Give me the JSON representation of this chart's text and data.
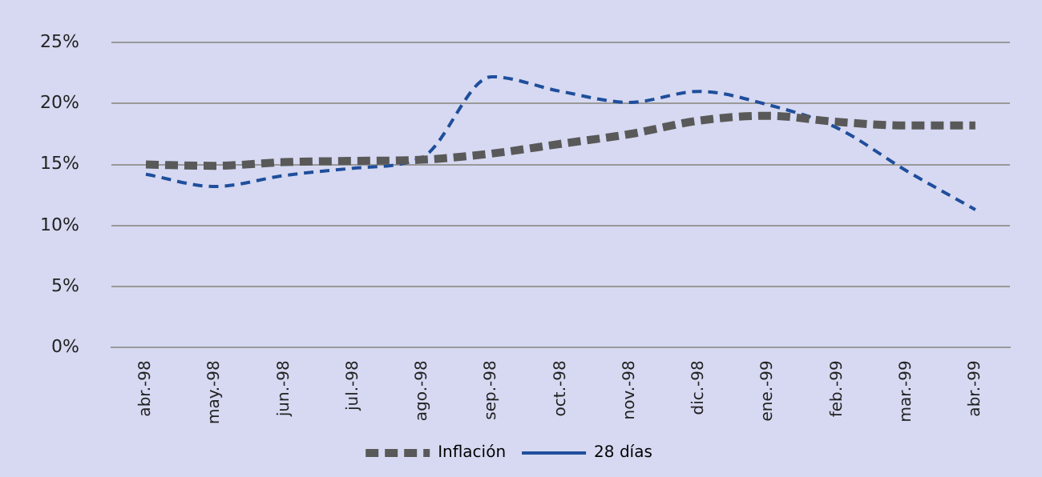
{
  "chart_data": {
    "type": "line",
    "categories": [
      "abr.-98",
      "may.-98",
      "jun.-98",
      "jul.-98",
      "ago.-98",
      "sep.-98",
      "oct.-98",
      "nov.-98",
      "dic.-98",
      "ene.-99",
      "feb.-99",
      "mar.-99",
      "abr.-99"
    ],
    "series": [
      {
        "name": "Inflación",
        "color": "#595959",
        "line_style": "dashed",
        "values": [
          15.0,
          14.9,
          15.2,
          15.3,
          15.4,
          15.9,
          16.7,
          17.5,
          18.6,
          19.0,
          18.5,
          18.2,
          18.2
        ]
      },
      {
        "name": "28 días",
        "color": "#1f4e9c",
        "line_style": "dashed",
        "values": [
          14.2,
          13.2,
          14.1,
          14.7,
          15.6,
          22.2,
          21.0,
          20.1,
          21.0,
          19.9,
          18.0,
          14.5,
          11.3
        ]
      }
    ],
    "ylim": [
      0,
      25
    ],
    "yticks": [
      {
        "value": 0,
        "label": "0%"
      },
      {
        "value": 5,
        "label": "5%"
      },
      {
        "value": 10,
        "label": "10%"
      },
      {
        "value": 15,
        "label": "15%"
      },
      {
        "value": 20,
        "label": "20%"
      },
      {
        "value": 25,
        "label": "25%"
      }
    ],
    "grid": "y",
    "legend": "bottom",
    "marker": "none"
  }
}
